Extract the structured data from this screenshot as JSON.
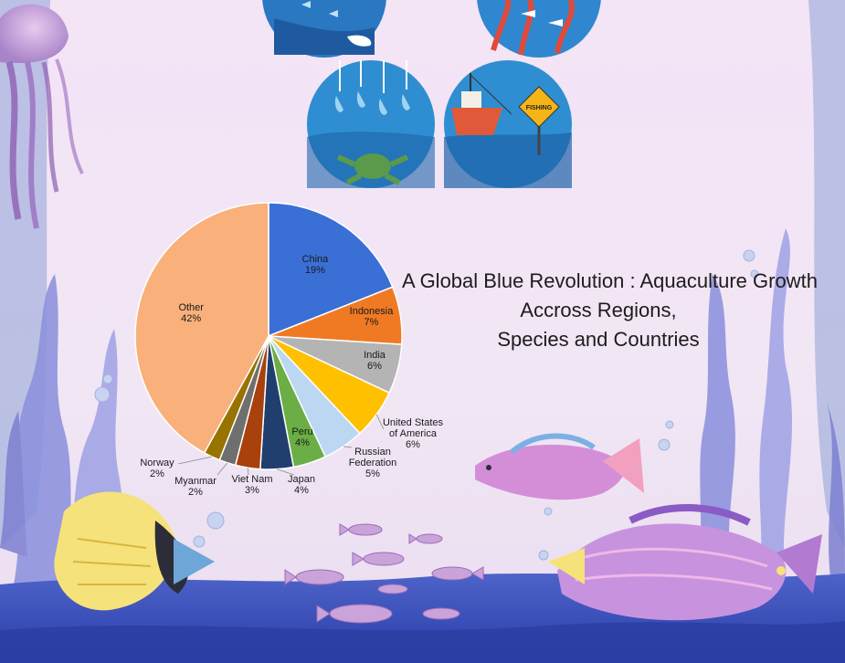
{
  "title_lines": [
    "A Global Blue Revolution : Aquaculture Growth",
    "Accross Regions,",
    "Species and Countries"
  ],
  "icons": {
    "badge_text": "FISHING"
  },
  "chart_data": {
    "type": "pie",
    "title": "",
    "start_angle_deg": 0,
    "direction": "clockwise",
    "slices": [
      {
        "label": "China",
        "value": 19,
        "text": "19%",
        "color": "#3a6fd6"
      },
      {
        "label": "Indonesia",
        "value": 7,
        "text": "7%",
        "color": "#f07a23"
      },
      {
        "label": "India",
        "value": 6,
        "text": "6%",
        "color": "#b4b4b4"
      },
      {
        "label": "United States of America",
        "value": 6,
        "text": "6%",
        "color": "#ffc000"
      },
      {
        "label": "Russian Federation",
        "value": 5,
        "text": "5%",
        "color": "#bcd7f2"
      },
      {
        "label": "Peru",
        "value": 4,
        "text": "4%",
        "color": "#6aae45"
      },
      {
        "label": "Japan",
        "value": 4,
        "text": "4%",
        "color": "#203e6e"
      },
      {
        "label": "Viet Nam",
        "value": 3,
        "text": "3%",
        "color": "#a8410b"
      },
      {
        "label": "Myanmar",
        "value": 2,
        "text": "2%",
        "color": "#6f6f6f"
      },
      {
        "label": "Norway",
        "value": 2,
        "text": "2%",
        "color": "#987300"
      },
      {
        "label": "Other",
        "value": 42,
        "text": "42%",
        "color": "#f9b07a"
      }
    ]
  }
}
